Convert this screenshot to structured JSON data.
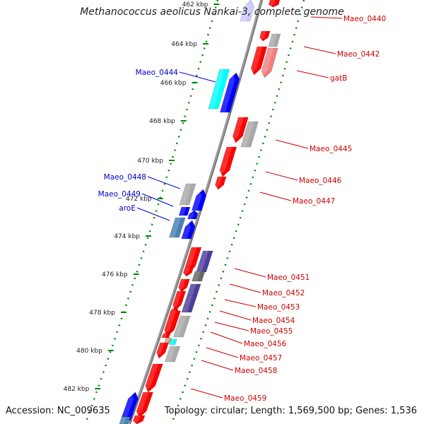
{
  "title": "Methanococcus aeolicus Nankai-3, complete genome",
  "footer": {
    "accession": "Accession: NC_009635",
    "summary": "Topology: circular; Length: 1,569,500 bp; Genes: 1,536"
  },
  "ticks": [
    "462 kbp",
    "464 kbp",
    "466 kbp",
    "468 kbp",
    "470 kbp",
    "472 kbp",
    "474 kbp",
    "476 kbp",
    "478 kbp",
    "480 kbp",
    "482 kbp"
  ],
  "labels": {
    "forward": [
      "Maeo_0444",
      "Maeo_0448",
      "Maeo_0449",
      "aroE"
    ],
    "reverse": [
      "Maeo_0440",
      "Maeo_0442",
      "gatB",
      "Maeo_0445",
      "Maeo_0446",
      "Maeo_0447",
      "Maeo_0451",
      "Maeo_0452",
      "Maeo_0453",
      "Maeo_0454",
      "Maeo_0455",
      "Maeo_0456",
      "Maeo_0457",
      "Maeo_0458",
      "Maeo_0459"
    ]
  },
  "colors": {
    "forward_label": "#0000cc",
    "reverse_label": "#cc0000",
    "backbone": "#888888",
    "dots": "#008800",
    "red": "#ff0000",
    "blue": "#0000ff",
    "gray": "#aaaaaa",
    "cyan": "#00ffff",
    "purple": "#4b3f9a",
    "steel": "#4682b4",
    "salmon": "#f08080",
    "lavender": "#ccccff"
  }
}
